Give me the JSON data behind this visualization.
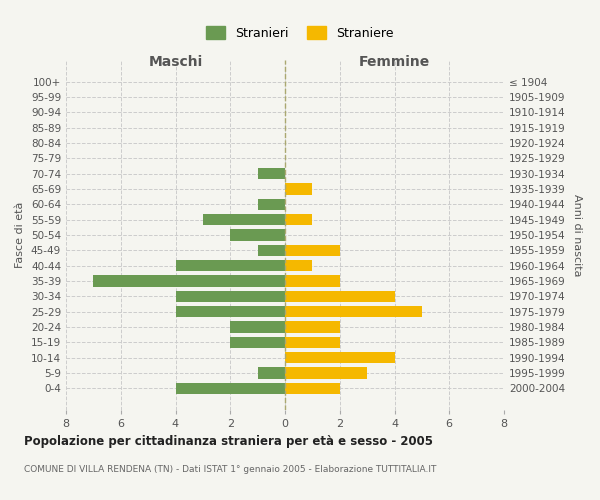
{
  "age_groups": [
    "100+",
    "95-99",
    "90-94",
    "85-89",
    "80-84",
    "75-79",
    "70-74",
    "65-69",
    "60-64",
    "55-59",
    "50-54",
    "45-49",
    "40-44",
    "35-39",
    "30-34",
    "25-29",
    "20-24",
    "15-19",
    "10-14",
    "5-9",
    "0-4"
  ],
  "birth_years": [
    "≤ 1904",
    "1905-1909",
    "1910-1914",
    "1915-1919",
    "1920-1924",
    "1925-1929",
    "1930-1934",
    "1935-1939",
    "1940-1944",
    "1945-1949",
    "1950-1954",
    "1955-1959",
    "1960-1964",
    "1965-1969",
    "1970-1974",
    "1975-1979",
    "1980-1984",
    "1985-1989",
    "1990-1994",
    "1995-1999",
    "2000-2004"
  ],
  "males": [
    0,
    0,
    0,
    0,
    0,
    0,
    1,
    0,
    1,
    3,
    2,
    1,
    4,
    7,
    4,
    4,
    2,
    2,
    0,
    1,
    4
  ],
  "females": [
    0,
    0,
    0,
    0,
    0,
    0,
    0,
    1,
    0,
    1,
    0,
    2,
    1,
    2,
    4,
    5,
    2,
    2,
    4,
    3,
    2
  ],
  "male_color": "#6a9a52",
  "female_color": "#f5b800",
  "background_color": "#f5f5f0",
  "grid_color": "#cccccc",
  "title": "Popolazione per cittadinanza straniera per età e sesso - 2005",
  "subtitle": "COMUNE DI VILLA RENDENA (TN) - Dati ISTAT 1° gennaio 2005 - Elaborazione TUTTITALIA.IT",
  "legend_stranieri": "Stranieri",
  "legend_straniere": "Straniere",
  "xlabel_left": "Maschi",
  "xlabel_right": "Femmine",
  "ylabel_left": "Fasce di età",
  "ylabel_right": "Anni di nascita",
  "xlim": 8,
  "bar_height": 0.75
}
